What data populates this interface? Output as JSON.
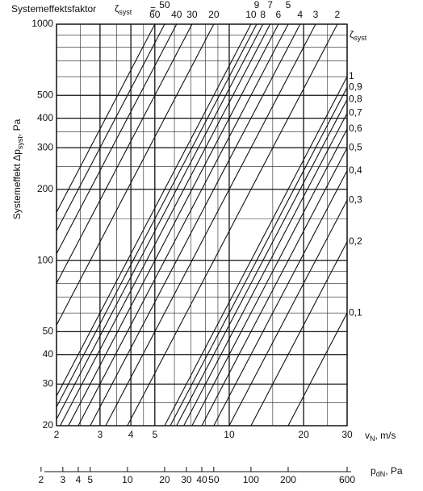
{
  "chart_data": {
    "type": "line",
    "title": "Systemeffektsfaktor",
    "zeta_label": {
      "main": "ζ",
      "sub": "syst",
      "eq": "="
    },
    "y_label": {
      "main": "Systemeffekt  Δp",
      "sub": "syst",
      "unit": ", Pa"
    },
    "x_label": {
      "main": "v",
      "sub": "N",
      "unit": ", m/s"
    },
    "x2_label": {
      "main": "p",
      "sub": "dN",
      "unit": ", Pa"
    },
    "legend_label": {
      "main": "ζ",
      "sub": "syst"
    },
    "log_x": true,
    "log_y": true,
    "grid": true,
    "xlim": [
      2,
      30
    ],
    "ylim": [
      20,
      1000
    ],
    "xticks": [
      2,
      3,
      4,
      5,
      10,
      20,
      30
    ],
    "yticks": [
      20,
      30,
      40,
      50,
      100,
      200,
      300,
      400,
      500,
      1000
    ],
    "xgrid": [
      2,
      2.5,
      3,
      3.5,
      4,
      4.5,
      5,
      6,
      7,
      8,
      9,
      10,
      15,
      20,
      25,
      30
    ],
    "ygrid": [
      20,
      25,
      30,
      40,
      50,
      60,
      70,
      80,
      90,
      100,
      150,
      200,
      250,
      300,
      350,
      400,
      500,
      600,
      700,
      800,
      900,
      1000
    ],
    "x2lim": [
      2.667,
      600
    ],
    "x2ticks": [
      2,
      3,
      4,
      5,
      10,
      20,
      30,
      40,
      50,
      100,
      200,
      600
    ],
    "series": [
      {
        "name": "60",
        "color": "#111",
        "x": [
          2,
          5
        ],
        "values": [
          160,
          1000
        ]
      },
      {
        "name": "50",
        "color": "#111",
        "x": [
          2,
          5.477
        ],
        "values": [
          133.3,
          1000
        ]
      },
      {
        "name": "40",
        "color": "#111",
        "x": [
          2,
          6.124
        ],
        "values": [
          106.7,
          1000
        ]
      },
      {
        "name": "30",
        "color": "#111",
        "x": [
          2,
          7.071
        ],
        "values": [
          80,
          1000
        ]
      },
      {
        "name": "20",
        "color": "#111",
        "x": [
          2,
          8.66
        ],
        "values": [
          53.3,
          1000
        ]
      },
      {
        "name": "10",
        "color": "#111",
        "x": [
          2,
          12.25
        ],
        "values": [
          26.7,
          1000
        ]
      },
      {
        "name": "9",
        "color": "#111",
        "x": [
          2,
          12.91
        ],
        "values": [
          24,
          1000
        ]
      },
      {
        "name": "8",
        "color": "#111",
        "x": [
          2,
          13.69
        ],
        "values": [
          21.3,
          1000
        ]
      },
      {
        "name": "7",
        "color": "#111",
        "x": [
          2.07,
          14.64
        ],
        "values": [
          20,
          1000
        ]
      },
      {
        "name": "6",
        "color": "#111",
        "x": [
          2.236,
          15.81
        ],
        "values": [
          20,
          1000
        ]
      },
      {
        "name": "5",
        "color": "#111",
        "x": [
          2.449,
          17.32
        ],
        "values": [
          20,
          1000
        ]
      },
      {
        "name": "4",
        "color": "#111",
        "x": [
          2.739,
          19.36
        ],
        "values": [
          20,
          1000
        ]
      },
      {
        "name": "3",
        "color": "#111",
        "x": [
          3.162,
          22.36
        ],
        "values": [
          20,
          1000
        ]
      },
      {
        "name": "2",
        "color": "#111",
        "x": [
          3.873,
          27.39
        ],
        "values": [
          20,
          1000
        ]
      },
      {
        "name": "1",
        "color": "#111",
        "x": [
          5.477,
          30
        ],
        "values": [
          20,
          600
        ]
      },
      {
        "name": "0,9",
        "color": "#111",
        "x": [
          5.774,
          30
        ],
        "values": [
          20,
          540
        ]
      },
      {
        "name": "0,8",
        "color": "#111",
        "x": [
          6.124,
          30
        ],
        "values": [
          20,
          480
        ]
      },
      {
        "name": "0,7",
        "color": "#111",
        "x": [
          6.547,
          30
        ],
        "values": [
          20,
          420
        ]
      },
      {
        "name": "0,6",
        "color": "#111",
        "x": [
          7.071,
          30
        ],
        "values": [
          20,
          360
        ]
      },
      {
        "name": "0,5",
        "color": "#111",
        "x": [
          7.746,
          30
        ],
        "values": [
          20,
          300
        ]
      },
      {
        "name": "0,4",
        "color": "#111",
        "x": [
          8.66,
          30
        ],
        "values": [
          20,
          240
        ]
      },
      {
        "name": "0,3",
        "color": "#111",
        "x": [
          10,
          30
        ],
        "values": [
          20,
          180
        ]
      },
      {
        "name": "0,2",
        "color": "#111",
        "x": [
          12.25,
          30
        ],
        "values": [
          20,
          120
        ]
      },
      {
        "name": "0,1",
        "color": "#111",
        "x": [
          17.32,
          30
        ],
        "values": [
          20,
          60
        ]
      }
    ]
  }
}
